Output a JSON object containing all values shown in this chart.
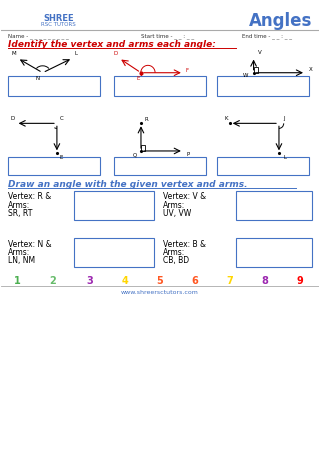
{
  "title": "Angles",
  "section1_title": "Identify the vertex and arms each angle:",
  "section2_title": "Draw an angle with the given vertex and arms.",
  "footer_numbers": [
    "1",
    "2",
    "3",
    "4",
    "5",
    "6",
    "7",
    "8",
    "9"
  ],
  "footer_colors": [
    "#4CAF50",
    "#66BB6A",
    "#9C27B0",
    "#FFD600",
    "#FF5722",
    "#FF5722",
    "#FFD600",
    "#9C27B0",
    "#FF0000"
  ],
  "website": "www.shreersctutors.com",
  "bg_color": "#ffffff",
  "blue_color": "#4472C4",
  "red_color": "#CC0000",
  "dark_color": "#333333"
}
